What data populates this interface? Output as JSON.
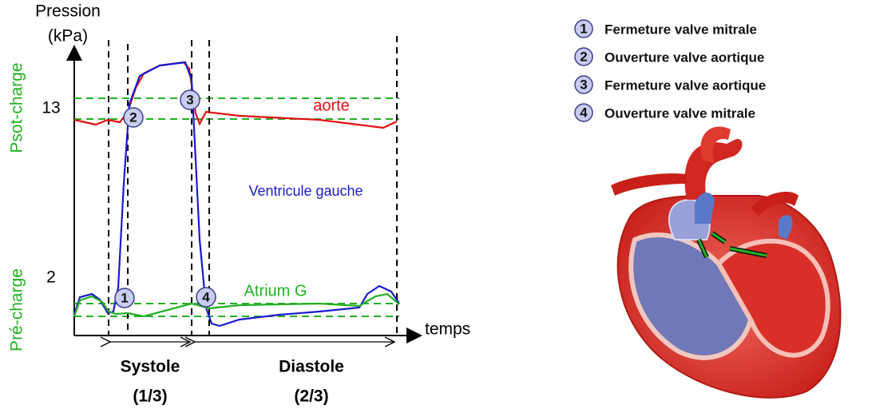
{
  "graph": {
    "y_label_line1": "Pression",
    "y_label_line2": "(kPa)",
    "y_tick_high": "13",
    "y_tick_low": "2",
    "afterload_label": "Psot-charge",
    "preload_label": "Pré-charge",
    "x_label": "temps",
    "curves": {
      "aorta": "aorte",
      "ventricle": "Ventricule gauche",
      "atrium": "Atrium G"
    },
    "markers": [
      "1",
      "2",
      "3",
      "4"
    ],
    "phases": [
      {
        "name": "Systole",
        "fraction": "(1/3)"
      },
      {
        "name": "Diastole",
        "fraction": "(2/3)"
      }
    ]
  },
  "legend": {
    "items": [
      {
        "number": "1",
        "text": "Fermeture valve mitrale"
      },
      {
        "number": "2",
        "text": "Ouverture valve aortique"
      },
      {
        "number": "3",
        "text": "Fermeture valve aortique"
      },
      {
        "number": "4",
        "text": "Ouverture valve mitrale"
      }
    ]
  }
}
